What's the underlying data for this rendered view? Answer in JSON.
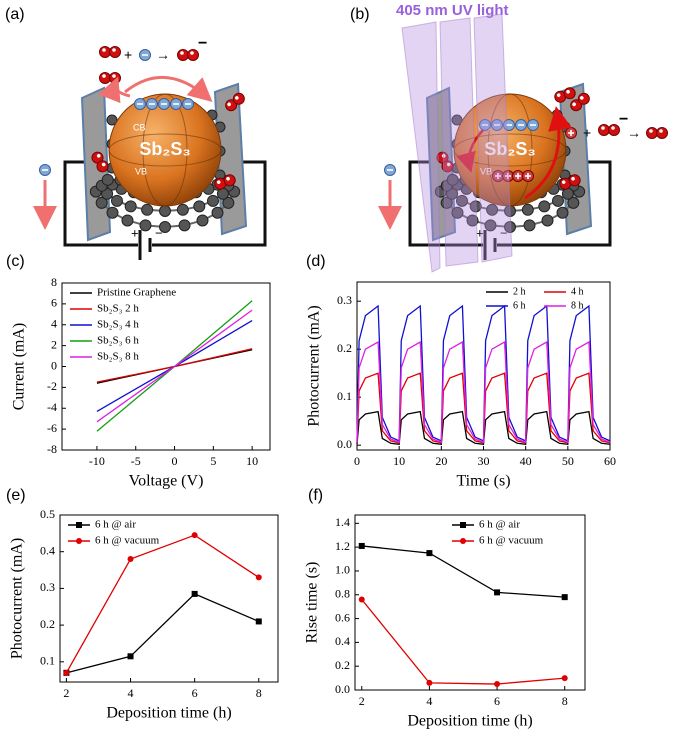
{
  "diagrams": [
    {
      "panel_label": "(a)",
      "particle": "Sb₂S₃",
      "cb": "CB",
      "vb": "VB",
      "reaction_plus": "+",
      "reaction_arrow": "→",
      "reaction_minus": "−",
      "battery_plus": "+",
      "battery_minus": "−"
    },
    {
      "panel_label": "(b)",
      "light": "405 nm UV light",
      "particle": "Sb₂S₃",
      "cb": "CB",
      "vb": "VB",
      "reaction_plus": "+",
      "reaction_arrow": "→",
      "reaction_minus": "−",
      "battery_plus": "+",
      "battery_minus": "−"
    }
  ],
  "chart_data": [
    {
      "type": "line",
      "panel_label": "(c)",
      "x_label": "Voltage (V)",
      "y_label": "Current (mA)",
      "x": [
        -10,
        -5,
        0,
        5,
        10
      ],
      "series": [
        {
          "name": "Pristine Graphene",
          "color": "#000000",
          "values": [
            -1.6,
            -0.8,
            0,
            0.8,
            1.6
          ]
        },
        {
          "name": "Sb₂S₃ 2 h",
          "color": "#e00000",
          "values": [
            -1.5,
            -0.75,
            0,
            0.85,
            1.7
          ]
        },
        {
          "name": "Sb₂S₃ 4 h",
          "color": "#1010d0",
          "values": [
            -4.3,
            -2.15,
            0,
            2.2,
            4.4
          ]
        },
        {
          "name": "Sb₂S₃ 6 h",
          "color": "#10a010",
          "values": [
            -6.2,
            -3.1,
            0,
            3.15,
            6.3
          ]
        },
        {
          "name": "Sb₂S₃ 8 h",
          "color": "#e020e0",
          "values": [
            -5.3,
            -2.65,
            0,
            2.7,
            5.4
          ]
        }
      ],
      "xlim": [
        -14.5,
        12.3
      ],
      "xticks": [
        -10,
        -5,
        0,
        5,
        10
      ],
      "ylim": [
        -8,
        8
      ],
      "yticks": [
        -8,
        -6,
        -4,
        -2,
        0,
        2,
        4,
        6,
        8
      ],
      "legend": "upper left",
      "legend_columns": 1
    },
    {
      "type": "line",
      "panel_label": "(d)",
      "x_label": "Time (s)",
      "y_label": "Photocurrent (mA)",
      "x": [
        0,
        0.5,
        2,
        5,
        6,
        8,
        10,
        10.5,
        12,
        15,
        16,
        18,
        20,
        20.5,
        22,
        25,
        26,
        28,
        30,
        30.5,
        32,
        35,
        36,
        38,
        40,
        40.5,
        42,
        45,
        46,
        48,
        50,
        50.5,
        52,
        55,
        56,
        58,
        60
      ],
      "series": [
        {
          "name": "2 h",
          "color": "#000000",
          "values": [
            0.002,
            0.053,
            0.065,
            0.07,
            0.014,
            0.004,
            0.002,
            0.053,
            0.065,
            0.07,
            0.014,
            0.004,
            0.002,
            0.053,
            0.065,
            0.07,
            0.014,
            0.004,
            0.002,
            0.053,
            0.065,
            0.07,
            0.014,
            0.004,
            0.002,
            0.053,
            0.065,
            0.07,
            0.014,
            0.004,
            0.002,
            0.053,
            0.065,
            0.07,
            0.014,
            0.004,
            0.002
          ]
        },
        {
          "name": "4 h",
          "color": "#e00000",
          "values": [
            0.005,
            0.113,
            0.14,
            0.15,
            0.03,
            0.009,
            0.005,
            0.113,
            0.14,
            0.15,
            0.03,
            0.009,
            0.005,
            0.113,
            0.14,
            0.15,
            0.03,
            0.009,
            0.005,
            0.113,
            0.14,
            0.15,
            0.03,
            0.009,
            0.005,
            0.113,
            0.14,
            0.15,
            0.03,
            0.009,
            0.005,
            0.113,
            0.14,
            0.15,
            0.03,
            0.009,
            0.005
          ]
        },
        {
          "name": "6 h",
          "color": "#1010d0",
          "values": [
            0.009,
            0.218,
            0.27,
            0.29,
            0.058,
            0.017,
            0.009,
            0.218,
            0.27,
            0.29,
            0.058,
            0.017,
            0.009,
            0.218,
            0.27,
            0.29,
            0.058,
            0.017,
            0.009,
            0.218,
            0.27,
            0.29,
            0.058,
            0.017,
            0.009,
            0.218,
            0.27,
            0.29,
            0.058,
            0.017,
            0.009,
            0.218,
            0.27,
            0.29,
            0.058,
            0.017,
            0.009
          ]
        },
        {
          "name": "8 h",
          "color": "#e020e0",
          "values": [
            0.006,
            0.161,
            0.2,
            0.215,
            0.043,
            0.013,
            0.006,
            0.161,
            0.2,
            0.215,
            0.043,
            0.013,
            0.006,
            0.161,
            0.2,
            0.215,
            0.043,
            0.013,
            0.006,
            0.161,
            0.2,
            0.215,
            0.043,
            0.013,
            0.006,
            0.161,
            0.2,
            0.215,
            0.043,
            0.013,
            0.006,
            0.161,
            0.2,
            0.215,
            0.043,
            0.013,
            0.006
          ]
        }
      ],
      "xlim": [
        0,
        60
      ],
      "xticks": [
        0,
        10,
        20,
        30,
        40,
        50,
        60
      ],
      "ylim": [
        -0.01,
        0.34
      ],
      "yticks": [
        {
          "value": 0,
          "label": "0.0"
        },
        0.1,
        0.2,
        0.3
      ],
      "legend": "upper right",
      "legend_columns": 2
    },
    {
      "type": "line",
      "panel_label": "(e)",
      "x_label": "Deposition time (h)",
      "y_label": "Photocurrent (mA)",
      "x": [
        2,
        4,
        6,
        8
      ],
      "series": [
        {
          "name": "6 h @ air",
          "color": "#000000",
          "marker": "square",
          "values": [
            0.07,
            0.115,
            0.285,
            0.21
          ]
        },
        {
          "name": "6 h @ vacuum",
          "color": "#e00000",
          "marker": "circle",
          "values": [
            0.07,
            0.38,
            0.445,
            0.33
          ]
        }
      ],
      "xlim": [
        1.8,
        8.6
      ],
      "xticks": [
        2,
        4,
        6,
        8
      ],
      "ylim": [
        0.045,
        0.5
      ],
      "yticks": [
        0.1,
        0.2,
        0.3,
        0.4,
        0.5
      ],
      "legend": "upper left",
      "legend_columns": 1
    },
    {
      "type": "line",
      "panel_label": "(f)",
      "x_label": "Deposition time (h)",
      "y_label": "Rise time (s)",
      "x": [
        2,
        4,
        6,
        8
      ],
      "series": [
        {
          "name": "6 h @ air",
          "color": "#000000",
          "marker": "square",
          "values": [
            1.21,
            1.15,
            0.82,
            0.78
          ]
        },
        {
          "name": "6 h @ vacuum",
          "color": "#e00000",
          "marker": "circle",
          "values": [
            0.76,
            0.06,
            0.05,
            0.1
          ]
        }
      ],
      "xlim": [
        1.8,
        8.6
      ],
      "xticks": [
        2,
        4,
        6,
        8
      ],
      "ylim": [
        0,
        1.47
      ],
      "yticks": [
        {
          "value": 0,
          "label": "0.0"
        },
        0.2,
        0.4,
        0.6,
        0.8,
        {
          "value": 1,
          "label": "1.0"
        },
        1.2,
        1.4
      ],
      "legend": "upper right",
      "legend_columns": 1
    }
  ]
}
